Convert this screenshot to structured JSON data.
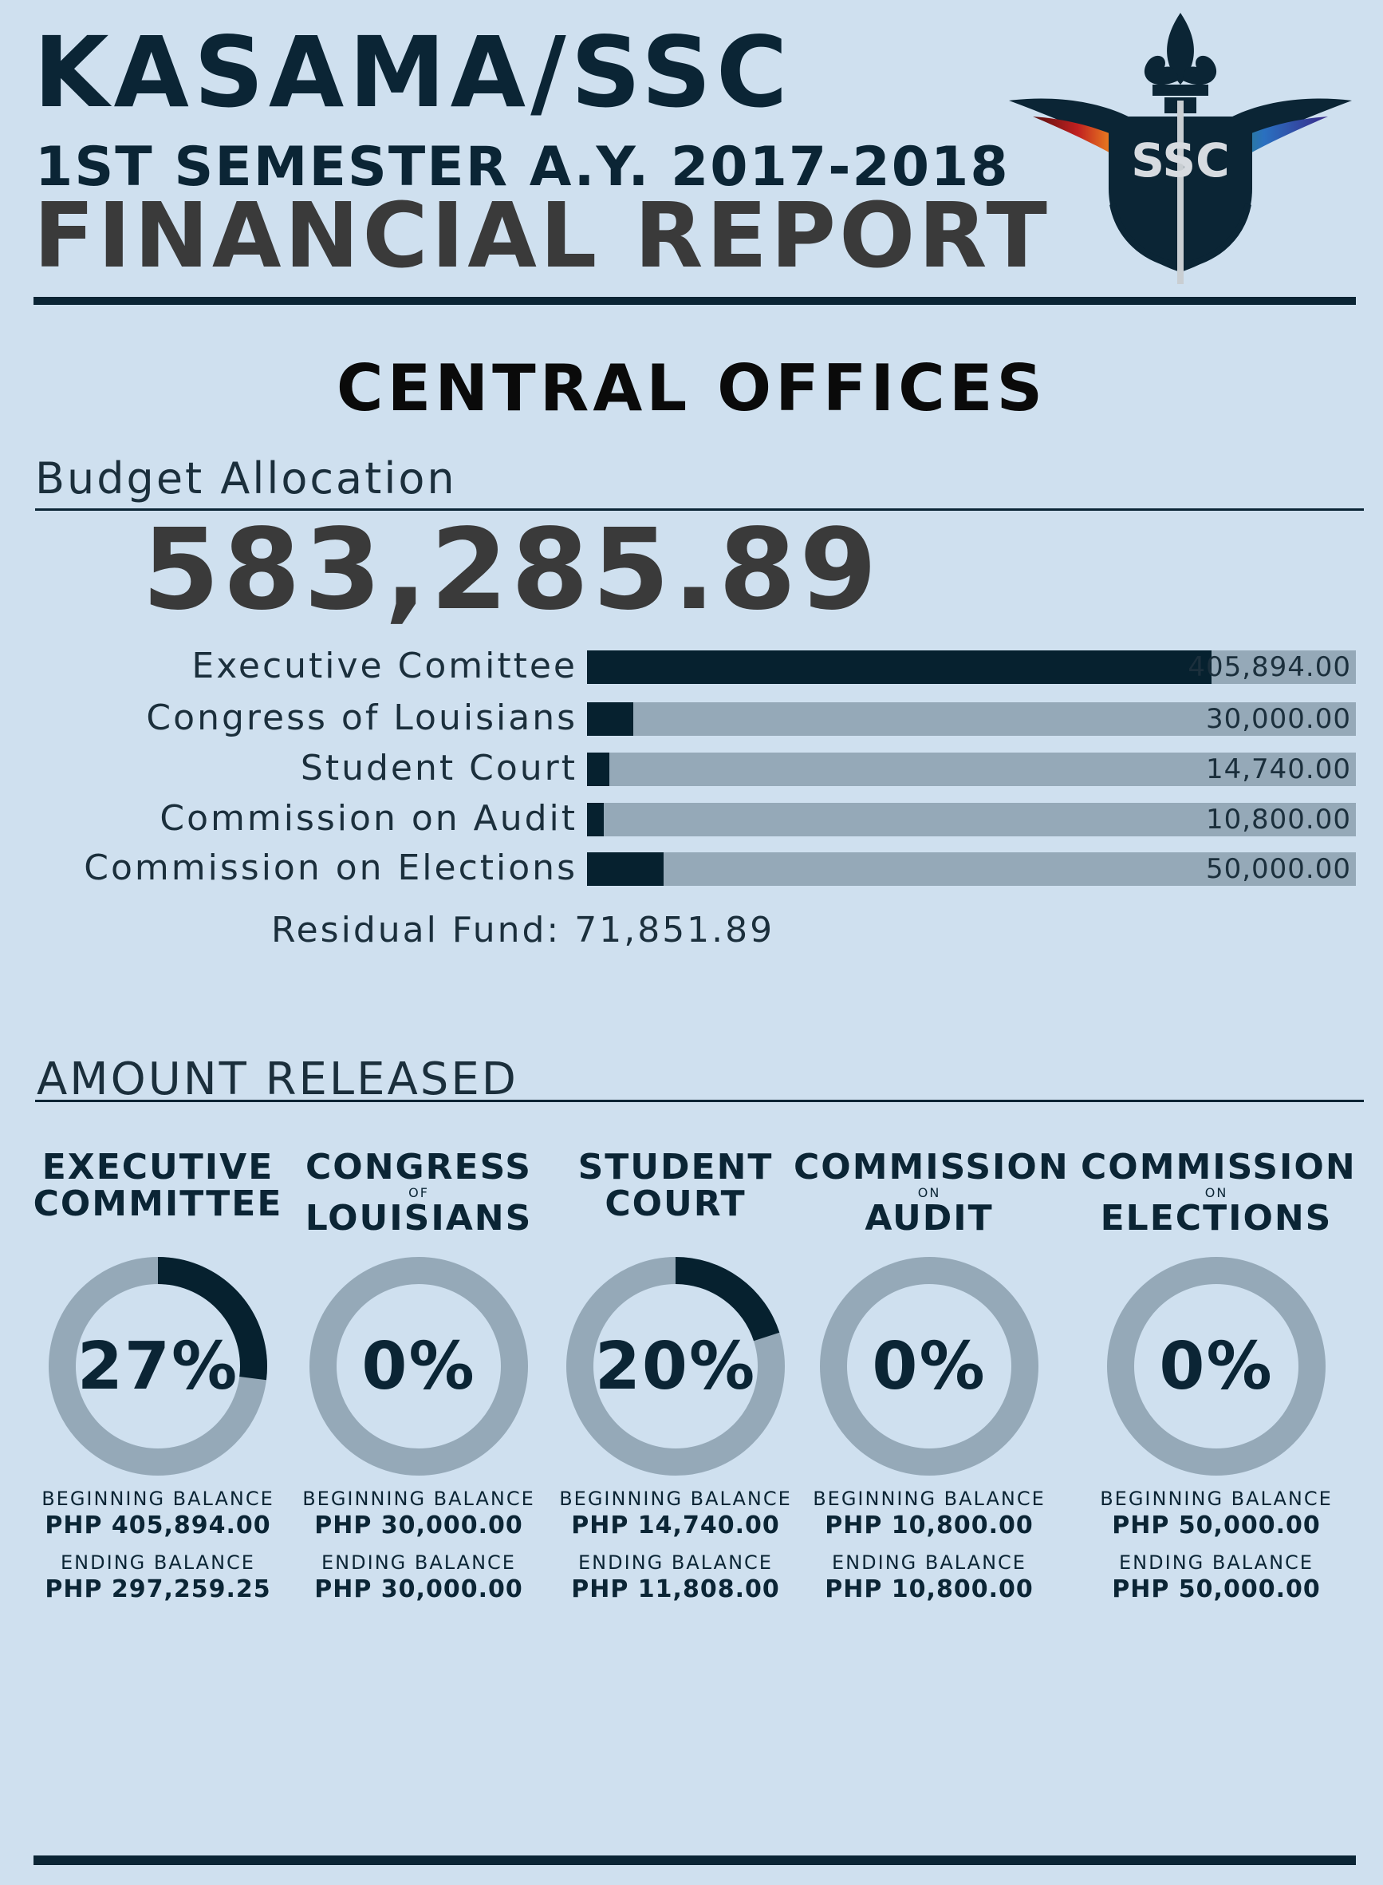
{
  "header": {
    "title": "KASAMA/SSC",
    "subtitle": "1ST SEMESTER A.Y. 2017-2018",
    "report": "FINANCIAL REPORT",
    "logo_text": "SSC",
    "logo_icon": "fleur-de-lis-winged-shield-logo"
  },
  "section_title": "CENTRAL OFFICES",
  "budget": {
    "label": "Budget Allocation",
    "total": "583,285.89",
    "total_value": 583285.89,
    "residual": "Residual Fund: 71,851.89"
  },
  "chart_data": [
    {
      "type": "bar",
      "orientation": "horizontal",
      "title": "Budget Allocation",
      "categories": [
        "Executive Comittee",
        "Congress of Louisians",
        "Student Court",
        "Commission on Audit",
        "Commission on Elections"
      ],
      "values": [
        405894.0,
        30000.0,
        14740.0,
        10800.0,
        50000.0
      ],
      "value_labels": [
        "405,894.00",
        "30,000.00",
        "14,740.00",
        "10,800.00",
        "50,000.00"
      ],
      "xlim": [
        0,
        500000
      ]
    },
    {
      "type": "pie",
      "style": "donut",
      "title": "AMOUNT RELEASED",
      "categories": [
        "EXECUTIVE COMMITTEE",
        "CONGRESS OF LOUISIANS",
        "STUDENT COURT",
        "COMMISSION ON AUDIT",
        "COMMISSION ON ELECTIONS"
      ],
      "values": [
        27,
        0,
        20,
        0,
        0
      ]
    }
  ],
  "released": {
    "label": "AMOUNT RELEASED",
    "beginning_label": "BEGINNING BALANCE",
    "ending_label": "ENDING BALANCE",
    "items": [
      {
        "line1": "EXECUTIVE",
        "small": "",
        "line2": "COMMITTEE",
        "pct": "27%",
        "pct_value": 27,
        "beginning": "PHP 405,894.00",
        "ending": "PHP 297,259.25"
      },
      {
        "line1": "CONGRESS",
        "small": "OF",
        "line2": "LOUISIANS",
        "pct": "0%",
        "pct_value": 0,
        "beginning": "PHP 30,000.00",
        "ending": "PHP 30,000.00"
      },
      {
        "line1": "STUDENT",
        "small": "",
        "line2": "COURT",
        "pct": "20%",
        "pct_value": 20,
        "beginning": "PHP 14,740.00",
        "ending": "PHP 11,808.00"
      },
      {
        "line1": "COMMISSION",
        "small": "ON",
        "line2": "AUDIT",
        "pct": "0%",
        "pct_value": 0,
        "beginning": "PHP 10,800.00",
        "ending": "PHP 10,800.00"
      },
      {
        "line1": "COMMISSION",
        "small": "ON",
        "line2": "ELECTIONS",
        "pct": "0%",
        "pct_value": 0,
        "beginning": "PHP 50,000.00",
        "ending": "PHP 50,000.00"
      }
    ]
  },
  "colors": {
    "background": "#cfe0ef",
    "dark": "#06212f",
    "track": "#95a9b8",
    "accent_text": "#3a3a3a"
  }
}
